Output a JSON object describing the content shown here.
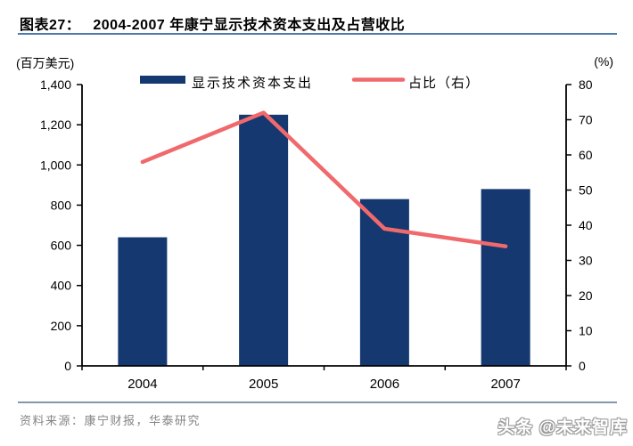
{
  "header": {
    "figure_label": "图表27：",
    "figure_title": "2004-2007 年康宁显示技术资本支出及占营收比"
  },
  "chart_data": {
    "type": "bar",
    "subtype": "bar-line-combo",
    "categories": [
      "2004",
      "2005",
      "2006",
      "2007"
    ],
    "series": [
      {
        "name": "显示技术资本支出",
        "type": "bar",
        "axis": "left",
        "color": "#14386f",
        "values": [
          640,
          1250,
          830,
          880
        ]
      },
      {
        "name": "占比（右）",
        "type": "line",
        "axis": "right",
        "color": "#f0696c",
        "values": [
          58,
          72,
          39,
          34
        ]
      }
    ],
    "left_axis": {
      "unit_label": "(百万美元)",
      "min": 0,
      "max": 1400,
      "step": 200,
      "tick_labels": [
        "0",
        "200",
        "400",
        "600",
        "800",
        "1,000",
        "1,200",
        "1,400"
      ]
    },
    "right_axis": {
      "unit_label": "(%)",
      "min": 0,
      "max": 80,
      "step": 10,
      "tick_labels": [
        "0",
        "10",
        "20",
        "30",
        "40",
        "50",
        "60",
        "70",
        "80"
      ]
    },
    "legend_position": "top",
    "grid": "off"
  },
  "footer": {
    "source_text": "资料来源：康宁财报，华泰研究",
    "watermark_text": "头条 @未来智库"
  }
}
